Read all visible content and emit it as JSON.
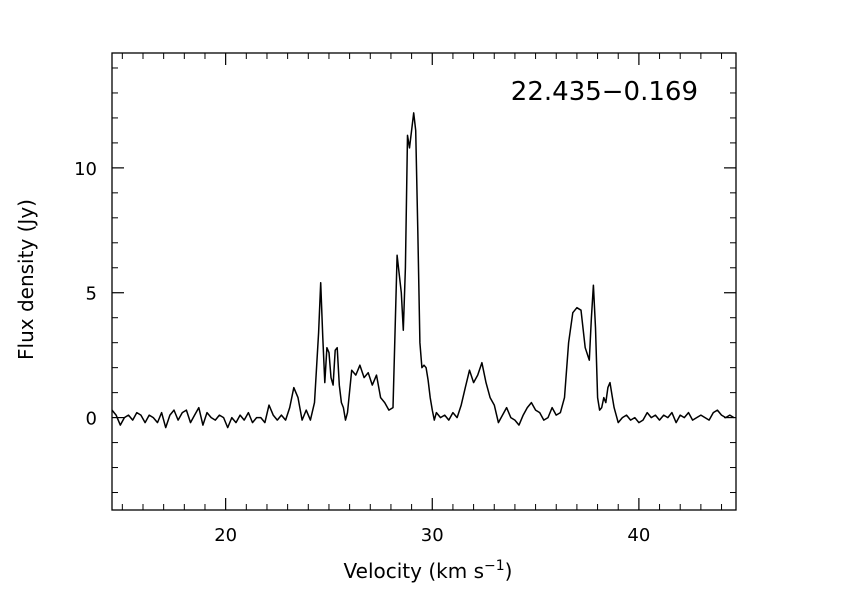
{
  "chart_data": {
    "type": "line",
    "annotation": "22.435−0.169",
    "xlabel": "Velocity (km s",
    "xlabel_sup": "−1",
    "xlabel_close": ")",
    "ylabel": "Flux density (Jy)",
    "xlim": [
      14.5,
      44.7
    ],
    "ylim": [
      -3.7,
      14.6
    ],
    "x_ticks": [
      {
        "value": 20,
        "label": "20"
      },
      {
        "value": 30,
        "label": "30"
      },
      {
        "value": 40,
        "label": "40"
      }
    ],
    "y_ticks": [
      {
        "value": 0,
        "label": "0"
      },
      {
        "value": 5,
        "label": "5"
      },
      {
        "value": 10,
        "label": "10"
      }
    ],
    "x_minor_step": 1,
    "y_minor_step": 1,
    "grid": false,
    "series": [
      {
        "color": "#000000",
        "x": [
          14.5,
          14.7,
          14.9,
          15.1,
          15.3,
          15.5,
          15.7,
          15.9,
          16.1,
          16.3,
          16.5,
          16.7,
          16.9,
          17.1,
          17.3,
          17.5,
          17.7,
          17.9,
          18.1,
          18.3,
          18.5,
          18.7,
          18.9,
          19.1,
          19.3,
          19.5,
          19.7,
          19.9,
          20.1,
          20.3,
          20.5,
          20.7,
          20.9,
          21.1,
          21.3,
          21.5,
          21.7,
          21.9,
          22.1,
          22.3,
          22.5,
          22.7,
          22.9,
          23.1,
          23.3,
          23.5,
          23.7,
          23.9,
          24.1,
          24.3,
          24.5,
          24.6,
          24.7,
          24.8,
          24.9,
          25.0,
          25.1,
          25.2,
          25.3,
          25.4,
          25.5,
          25.6,
          25.7,
          25.8,
          25.9,
          26.1,
          26.3,
          26.5,
          26.7,
          26.9,
          27.1,
          27.3,
          27.5,
          27.7,
          27.9,
          28.1,
          28.3,
          28.5,
          28.6,
          28.7,
          28.8,
          28.9,
          29.0,
          29.1,
          29.2,
          29.3,
          29.4,
          29.5,
          29.6,
          29.7,
          29.8,
          29.9,
          30.0,
          30.1,
          30.2,
          30.4,
          30.6,
          30.8,
          31.0,
          31.2,
          31.4,
          31.6,
          31.8,
          32.0,
          32.2,
          32.4,
          32.6,
          32.8,
          33.0,
          33.2,
          33.4,
          33.6,
          33.8,
          34.0,
          34.2,
          34.4,
          34.6,
          34.8,
          35.0,
          35.2,
          35.4,
          35.6,
          35.8,
          36.0,
          36.2,
          36.4,
          36.6,
          36.8,
          37.0,
          37.2,
          37.4,
          37.6,
          37.7,
          37.8,
          37.9,
          38.0,
          38.1,
          38.2,
          38.3,
          38.4,
          38.5,
          38.6,
          38.7,
          38.8,
          39.0,
          39.2,
          39.4,
          39.6,
          39.8,
          40.0,
          40.2,
          40.4,
          40.6,
          40.8,
          41.0,
          41.2,
          41.4,
          41.6,
          41.8,
          42.0,
          42.2,
          42.4,
          42.6,
          42.8,
          43.0,
          43.2,
          43.4,
          43.6,
          43.8,
          44.0,
          44.2,
          44.4,
          44.6
        ],
        "y": [
          0.3,
          0.1,
          -0.3,
          0.0,
          0.1,
          -0.1,
          0.2,
          0.1,
          -0.2,
          0.1,
          0.0,
          -0.2,
          0.2,
          -0.4,
          0.1,
          0.3,
          -0.1,
          0.2,
          0.3,
          -0.2,
          0.1,
          0.4,
          -0.3,
          0.2,
          0.0,
          -0.1,
          0.1,
          0.0,
          -0.4,
          0.0,
          -0.2,
          0.1,
          -0.1,
          0.2,
          -0.2,
          0.0,
          0.0,
          -0.2,
          0.5,
          0.1,
          -0.1,
          0.1,
          -0.1,
          0.4,
          1.2,
          0.8,
          -0.1,
          0.3,
          -0.1,
          0.6,
          3.4,
          5.4,
          3.2,
          1.4,
          2.8,
          2.6,
          1.6,
          1.3,
          2.7,
          2.8,
          1.3,
          0.6,
          0.4,
          -0.1,
          0.2,
          1.9,
          1.7,
          2.1,
          1.6,
          1.8,
          1.3,
          1.7,
          0.8,
          0.6,
          0.3,
          0.4,
          6.5,
          5.0,
          3.5,
          6.0,
          11.3,
          10.8,
          11.5,
          12.2,
          11.5,
          7.5,
          3.0,
          2.0,
          2.1,
          2.0,
          1.5,
          0.8,
          0.3,
          -0.1,
          0.2,
          0.0,
          0.1,
          -0.1,
          0.2,
          0.0,
          0.5,
          1.2,
          1.9,
          1.4,
          1.7,
          2.2,
          1.4,
          0.8,
          0.5,
          -0.2,
          0.1,
          0.4,
          0.0,
          -0.1,
          -0.3,
          0.1,
          0.4,
          0.6,
          0.3,
          0.2,
          -0.1,
          0.0,
          0.4,
          0.1,
          0.2,
          0.8,
          3.0,
          4.2,
          4.4,
          4.3,
          2.8,
          2.3,
          4.0,
          5.3,
          3.6,
          0.8,
          0.3,
          0.4,
          0.8,
          0.6,
          1.2,
          1.4,
          0.9,
          0.4,
          -0.2,
          0.0,
          0.1,
          -0.1,
          0.0,
          -0.2,
          -0.1,
          0.2,
          0.0,
          0.1,
          -0.1,
          0.1,
          0.0,
          0.2,
          -0.2,
          0.1,
          0.0,
          0.2,
          -0.1,
          0.0,
          0.1,
          0.0,
          -0.1,
          0.2,
          0.3,
          0.1,
          0.0,
          0.1,
          0.0
        ]
      }
    ]
  }
}
